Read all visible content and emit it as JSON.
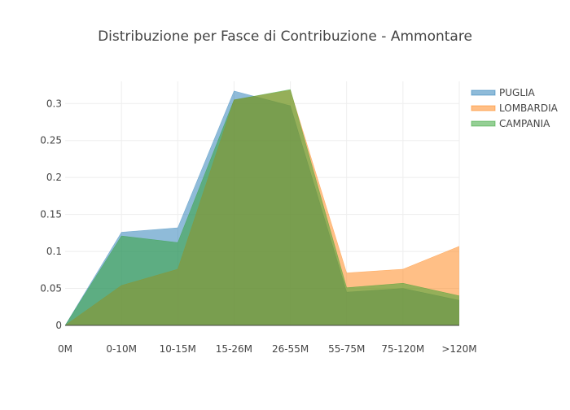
{
  "chart_data": {
    "type": "area",
    "title": "Distribuzione per Fasce di Contribuzione - Ammontare",
    "xlabel": "",
    "ylabel": "",
    "categories": [
      "0M",
      "0-10M",
      "10-15M",
      "15-26M",
      "26-55M",
      "55-75M",
      "75-120M",
      ">120M"
    ],
    "ylim": [
      0,
      0.33
    ],
    "yticks": [
      0,
      0.05,
      0.1,
      0.15,
      0.2,
      0.25,
      0.3
    ],
    "ytick_labels": [
      "0",
      "0.05",
      "0.1",
      "0.15",
      "0.2",
      "0.25",
      "0.3"
    ],
    "grid": true,
    "legend_position": "top-right",
    "series": [
      {
        "name": "PUGLIA",
        "color": "#1f77b4",
        "values": [
          0,
          0.126,
          0.132,
          0.317,
          0.297,
          0.045,
          0.05,
          0.034
        ]
      },
      {
        "name": "LOMBARDIA",
        "color": "#ff7f0e",
        "values": [
          0,
          0.054,
          0.076,
          0.305,
          0.318,
          0.071,
          0.076,
          0.107
        ]
      },
      {
        "name": "CAMPANIA",
        "color": "#2ca02c",
        "values": [
          0,
          0.121,
          0.112,
          0.305,
          0.319,
          0.051,
          0.057,
          0.04
        ]
      }
    ]
  }
}
